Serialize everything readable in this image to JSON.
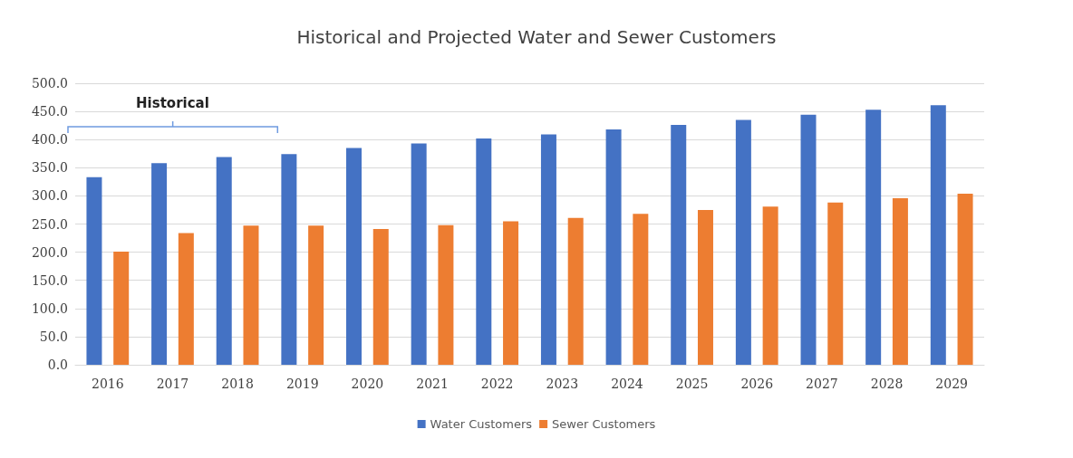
{
  "chart_data": {
    "type": "bar",
    "title": "Historical and Projected Water and Sewer Customers",
    "categories": [
      "2016",
      "2017",
      "2018",
      "2019",
      "2020",
      "2021",
      "2022",
      "2023",
      "2024",
      "2025",
      "2026",
      "2027",
      "2028",
      "2029"
    ],
    "series": [
      {
        "name": "Water Customers",
        "color": "#4472c4",
        "values": [
          333,
          358,
          369,
          374,
          385,
          393,
          402,
          409,
          418,
          426,
          435,
          444,
          453,
          461
        ]
      },
      {
        "name": "Sewer Customers",
        "color": "#ed7d31",
        "values": [
          201,
          234,
          247,
          247,
          241,
          248,
          255,
          261,
          268,
          275,
          281,
          288,
          296,
          304
        ]
      }
    ],
    "ylim": [
      0,
      500
    ],
    "yticks": [
      {
        "value": 0,
        "label": "0.0"
      },
      {
        "value": 50,
        "label": "50.0"
      },
      {
        "value": 100,
        "label": "100.0"
      },
      {
        "value": 150,
        "label": "150.0"
      },
      {
        "value": 200,
        "label": "200.0"
      },
      {
        "value": 250,
        "label": "250.0"
      },
      {
        "value": 300,
        "label": "300.0"
      },
      {
        "value": 350,
        "label": "350.0"
      },
      {
        "value": 400,
        "label": "400.0"
      },
      {
        "value": 450,
        "label": "450.0"
      },
      {
        "value": 500,
        "label": "500.0"
      }
    ],
    "annotations": [
      {
        "text": "Historical"
      }
    ],
    "grid": "y",
    "legend": "bottom"
  }
}
